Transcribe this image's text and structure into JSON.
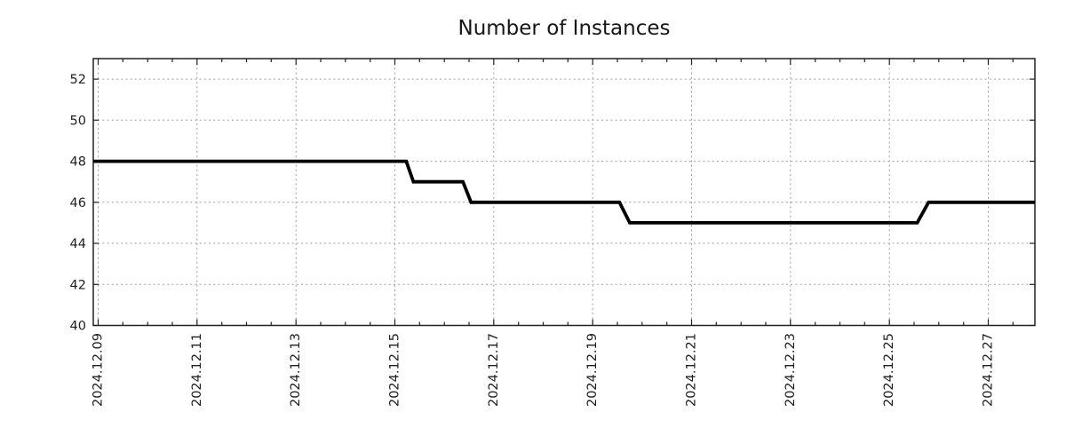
{
  "title": "Number of Instances",
  "colors": {
    "line": "#000000",
    "grid": "#9e9e9e",
    "axis": "#222222",
    "text": "#1f1f1f",
    "background": "#ffffff"
  },
  "chart_data": {
    "type": "line",
    "title": "Number of Instances",
    "xlabel": "",
    "ylabel": "",
    "legend": "none",
    "grid": "dotted",
    "ylim": [
      40,
      53
    ],
    "y_ticks": [
      40,
      42,
      44,
      46,
      48,
      50,
      52
    ],
    "xlim_days": [
      -0.099,
      18.943
    ],
    "x_minor_tick_interval_days": 0.5,
    "x_major_ticks": [
      {
        "day": 0,
        "label": "2024.12.09"
      },
      {
        "day": 2,
        "label": "2024.12.11"
      },
      {
        "day": 4,
        "label": "2024.12.13"
      },
      {
        "day": 6,
        "label": "2024.12.15"
      },
      {
        "day": 8,
        "label": "2024.12.17"
      },
      {
        "day": 10,
        "label": "2024.12.19"
      },
      {
        "day": 12,
        "label": "2024.12.21"
      },
      {
        "day": 14,
        "label": "2024.12.23"
      },
      {
        "day": 16,
        "label": "2024.12.25"
      },
      {
        "day": 18,
        "label": "2024.12.27"
      }
    ],
    "series": [
      {
        "name": "Number of Instances",
        "color": "#000000",
        "points": [
          {
            "date": "2024-12-08 21:40",
            "day": -0.099,
            "value": 48
          },
          {
            "date": "2024-12-15 05:30",
            "day": 6.229,
            "value": 48
          },
          {
            "date": "2024-12-15 09:00",
            "day": 6.375,
            "value": 47
          },
          {
            "date": "2024-12-16 09:00",
            "day": 7.375,
            "value": 47
          },
          {
            "date": "2024-12-16 13:00",
            "day": 7.542,
            "value": 46
          },
          {
            "date": "2024-12-19 13:00",
            "day": 10.542,
            "value": 46
          },
          {
            "date": "2024-12-19 18:00",
            "day": 10.75,
            "value": 45
          },
          {
            "date": "2024-12-25 13:30",
            "day": 16.563,
            "value": 45
          },
          {
            "date": "2024-12-25 19:00",
            "day": 16.792,
            "value": 46
          },
          {
            "date": "2024-12-27 22:40",
            "day": 18.943,
            "value": 46
          }
        ]
      }
    ]
  }
}
